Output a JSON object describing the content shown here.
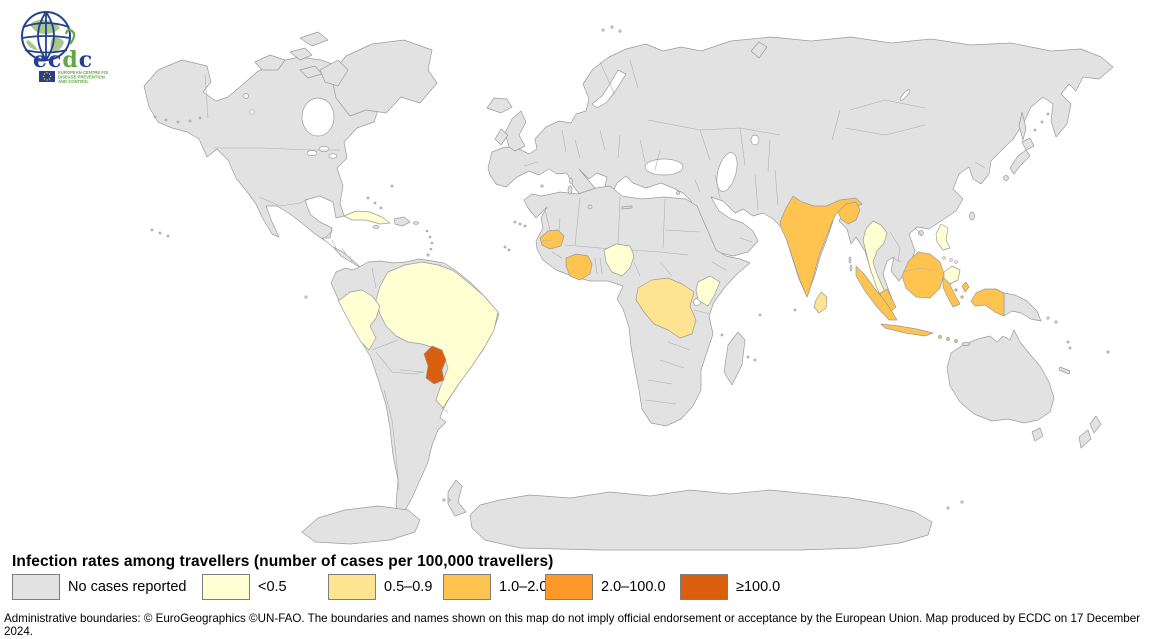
{
  "logo": {
    "brand": "ecdc",
    "org_lines": [
      "EUROPEAN CENTRE FOR",
      "DISEASE PREVENTION",
      "AND CONTROL"
    ]
  },
  "legend": {
    "title": "Infection rates among travellers (number of cases per 100,000 travellers)",
    "items": [
      {
        "label": "No cases reported",
        "color": "#E2E2E2"
      },
      {
        "label": "<0.5",
        "color": "#FFFFD4"
      },
      {
        "label": "0.5–0.9",
        "color": "#FEE391"
      },
      {
        "label": "1.0–2.0",
        "color": "#FEC44F"
      },
      {
        "label": "2.0–100.0",
        "color": "#FE9929"
      },
      {
        "label": "≥100.0",
        "color": "#D95F0E"
      }
    ]
  },
  "map": {
    "ocean_color": "#FFFFFF",
    "base_land_color": "#E2E2E2",
    "border_color": "#9B9B9B",
    "regions": [
      {
        "name": "Brazil",
        "category": "<0.5"
      },
      {
        "name": "Peru",
        "category": "<0.5"
      },
      {
        "name": "Cuba",
        "category": "<0.5"
      },
      {
        "name": "Nigeria",
        "category": "<0.5"
      },
      {
        "name": "Kenya",
        "category": "<0.5"
      },
      {
        "name": "Thailand",
        "category": "<0.5"
      },
      {
        "name": "Philippines",
        "category": "<0.5"
      },
      {
        "name": "Democratic Republic of the Congo",
        "category": "0.5–0.9"
      },
      {
        "name": "Sri Lanka",
        "category": "0.5–0.9"
      },
      {
        "name": "Senegal",
        "category": "1.0–2.0"
      },
      {
        "name": "Côte d'Ivoire",
        "category": "1.0–2.0"
      },
      {
        "name": "India",
        "category": "1.0–2.0"
      },
      {
        "name": "Bangladesh",
        "category": "1.0–2.0"
      },
      {
        "name": "Malaysia",
        "category": "1.0–2.0"
      },
      {
        "name": "Indonesia",
        "category": "1.0–2.0"
      },
      {
        "name": "Paraguay",
        "category": "≥100.0"
      }
    ]
  },
  "footer": {
    "text": "Administrative boundaries: © EuroGeographics ©UN-FAO. The boundaries and names shown on this map do not imply official endorsement or acceptance by the European Union. Map produced by ECDC on 17 December 2024."
  }
}
